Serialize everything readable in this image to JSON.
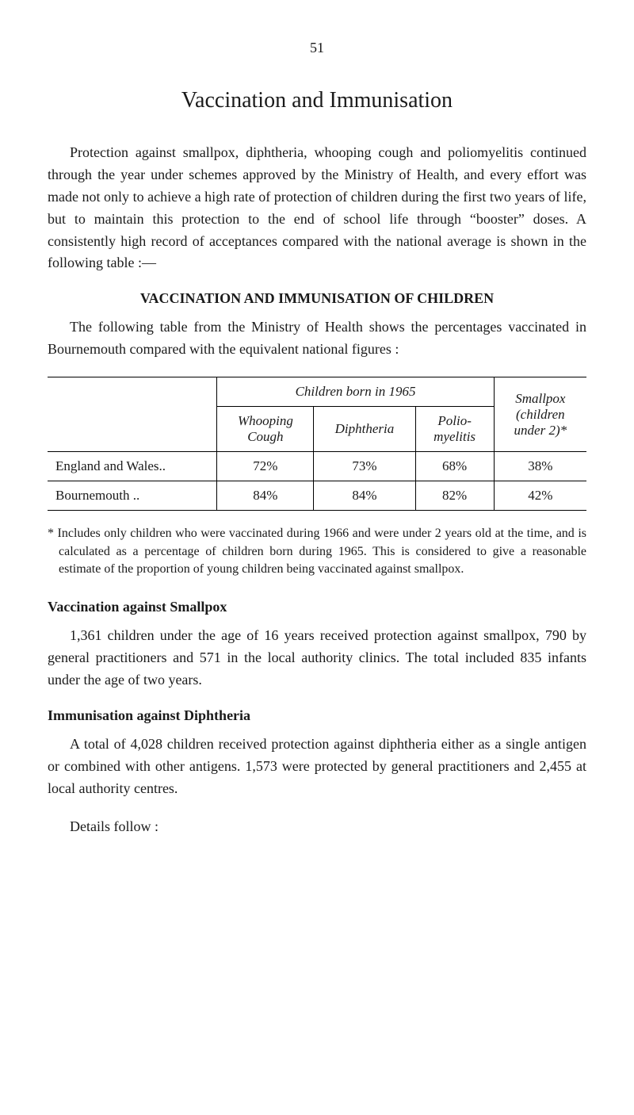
{
  "page_number": "51",
  "title": "Vaccination and Immunisation",
  "intro": "Protection against smallpox, diphtheria, whooping cough and poliomyelitis continued through the year under schemes approved by the Ministry of Health, and every effort was made not only to achieve a high rate of protection of children during the first two years of life, but to maintain this protection to the end of school life through “booster” doses. A consistently high record of acceptances compared with the national average is shown in the following table :—",
  "section1_heading": "VACCINATION AND IMMUNISATION OF CHILDREN",
  "section1_text": "The following table from the Ministry of Health shows the percentages vaccinated in Bournemouth compared with the equivalent national figures :",
  "table": {
    "super_header": "Children born in 1965",
    "columns": [
      {
        "label1": "Whooping",
        "label2": "Cough"
      },
      {
        "label1": "Diphtheria",
        "label2": ""
      },
      {
        "label1": "Polio-",
        "label2": "myelitis"
      }
    ],
    "last_col": {
      "label1": "Smallpox",
      "label2": "(children",
      "label3": "under 2)*"
    },
    "rows": [
      {
        "label": "England and Wales..",
        "whooping": "72%",
        "diphtheria": "73%",
        "polio": "68%",
        "smallpox": "38%"
      },
      {
        "label": "Bournemouth        ..",
        "whooping": "84%",
        "diphtheria": "84%",
        "polio": "82%",
        "smallpox": "42%"
      }
    ],
    "border_color": "#000000",
    "background": "#ffffff",
    "font_size": 17
  },
  "footnote": "* Includes only children who were vaccinated during 1966 and were under 2 years old at the time, and is calculated as a percentage of children born during 1965. This is considered to give a reasonable estimate of the proportion of young children being vaccinated against smallpox.",
  "section2_heading": "Vaccination against Smallpox",
  "section2_text": "1,361 children under the age of 16 years received protection against smallpox, 790 by general practitioners and 571 in the local authority clinics. The total included 835 infants under the age of two years.",
  "section3_heading": "Immunisation against Diphtheria",
  "section3_text": "A total of 4,028 children received protection against diphtheria either as a single antigen or combined with other antigens. 1,573 were protected by general practitioners and 2,455 at local authority centres.",
  "details_follow": "Details follow :"
}
